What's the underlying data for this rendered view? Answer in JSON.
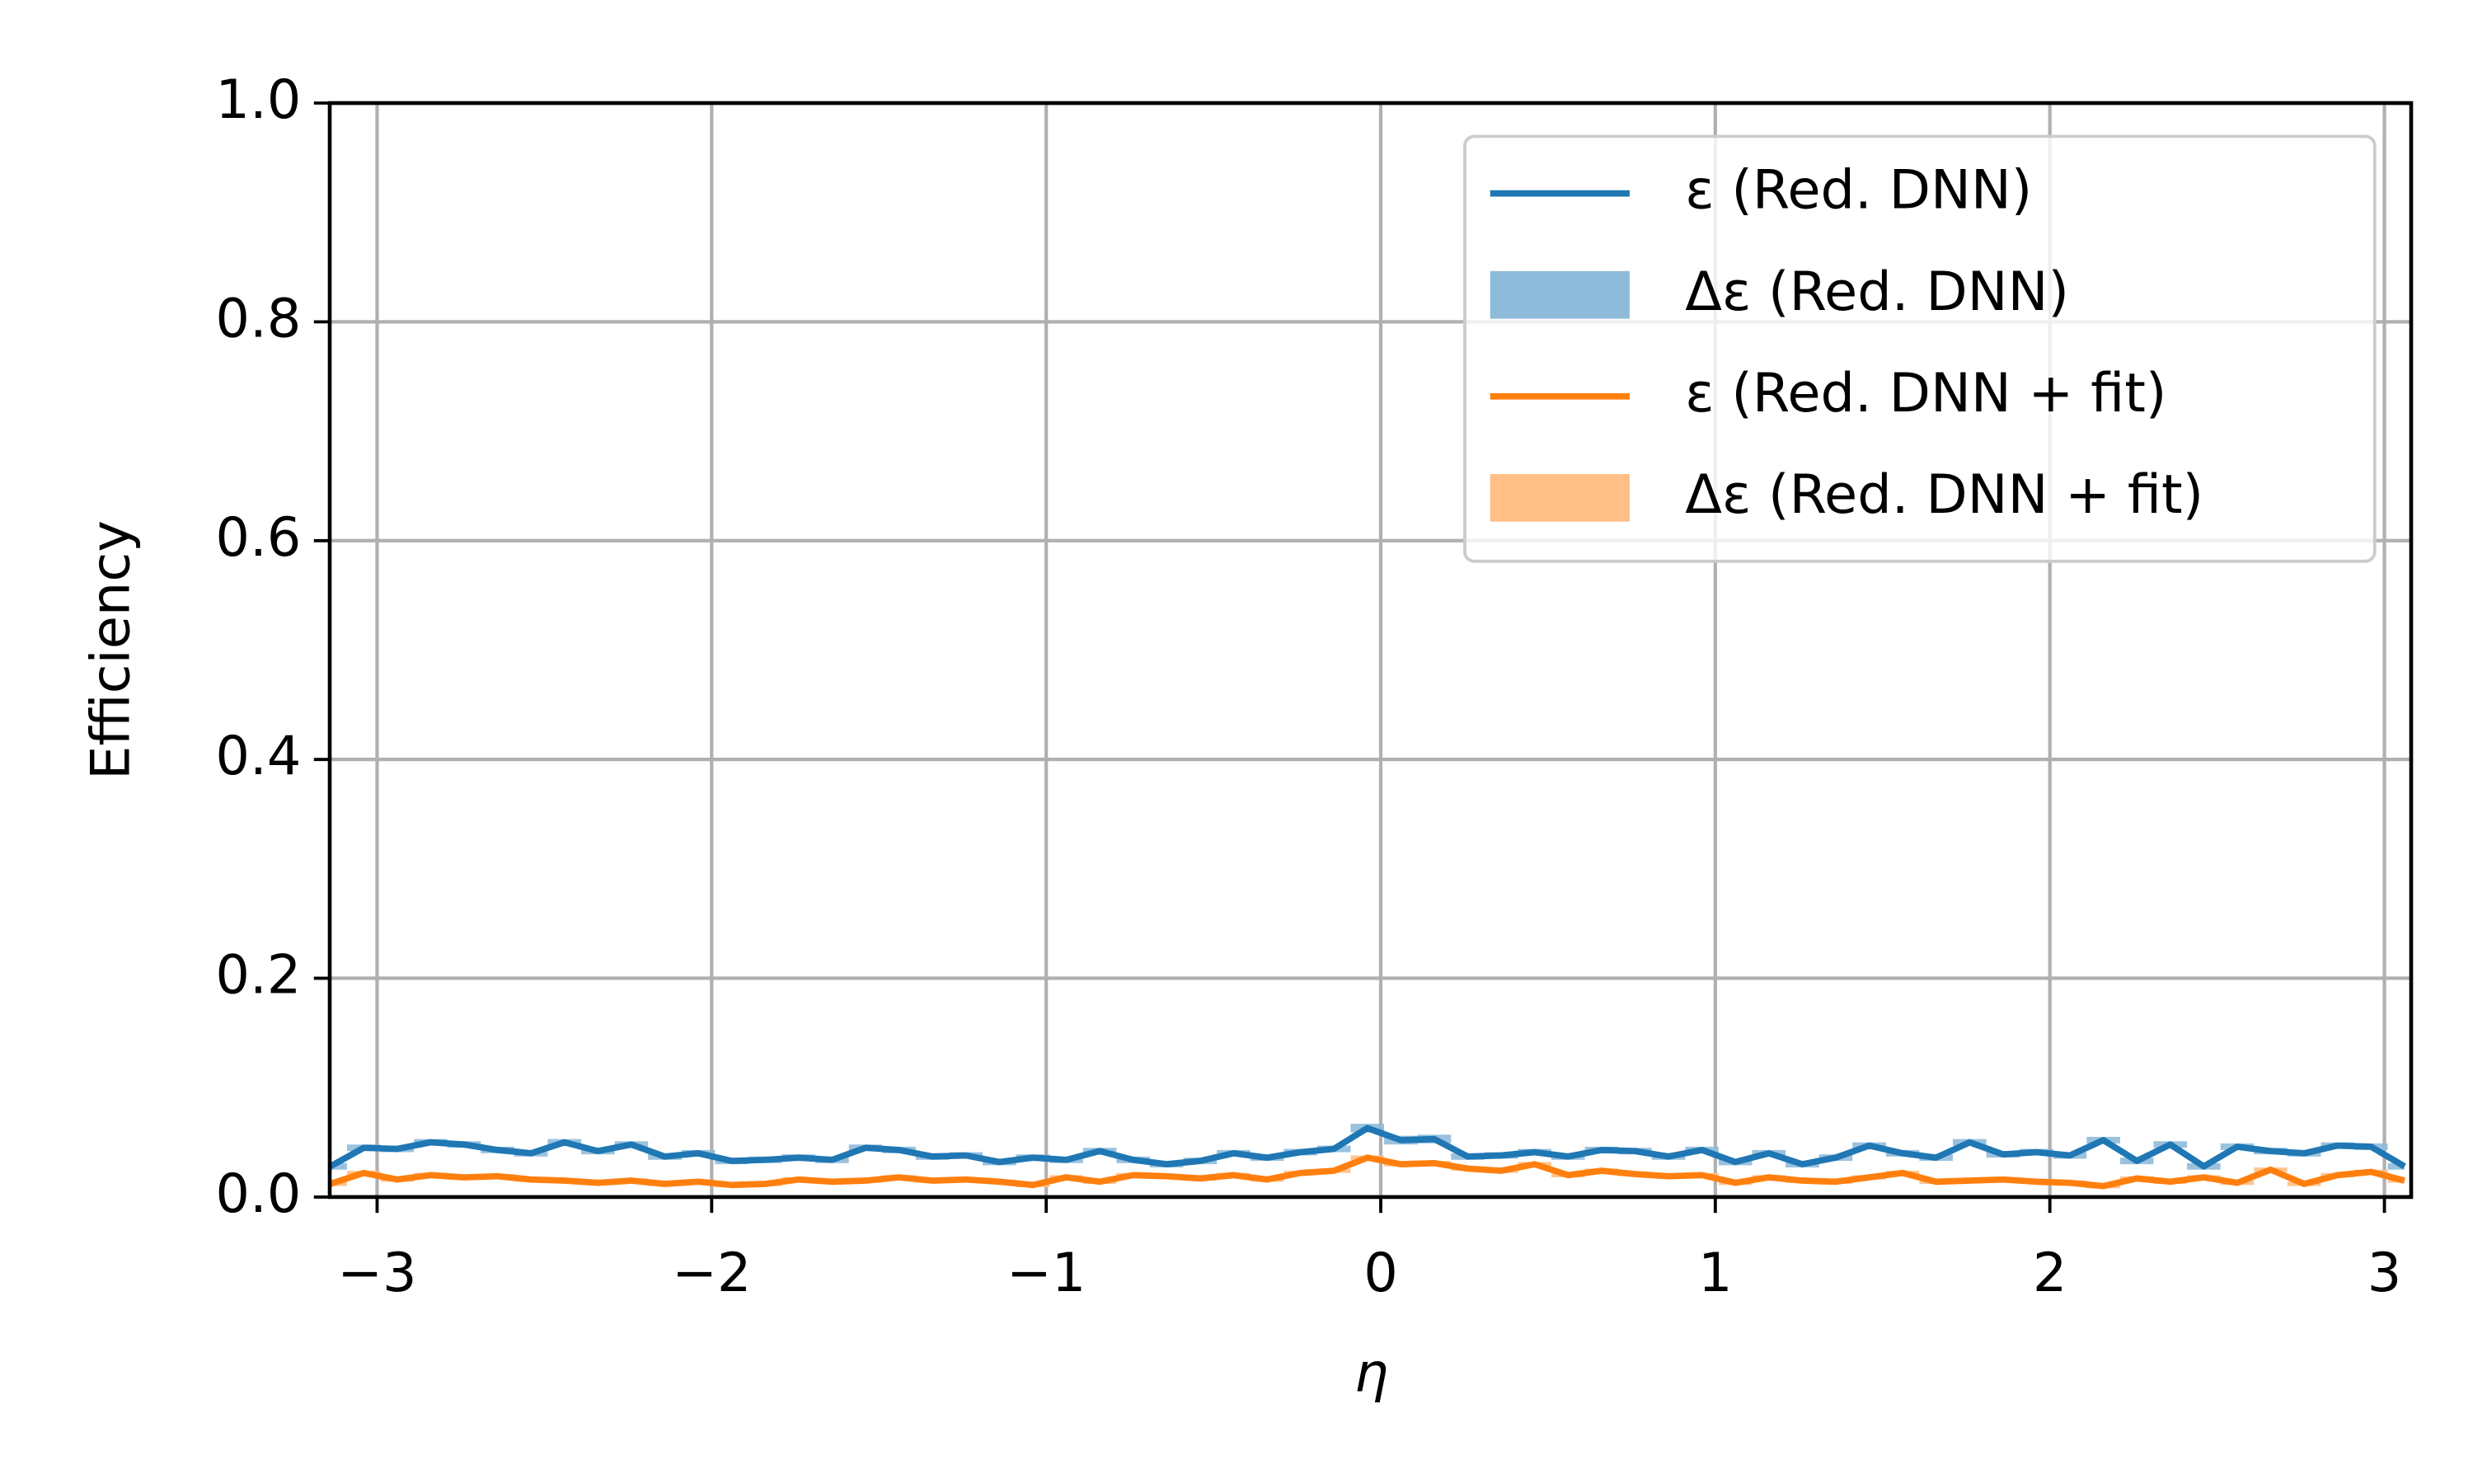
{
  "chart_data": {
    "type": "line",
    "x_label": "η",
    "y_label": "Efficiency",
    "xlim": [
      -3.1416,
      3.08
    ],
    "ylim": [
      0,
      1
    ],
    "xticks": [
      {
        "value": -3,
        "label": "−3"
      },
      {
        "value": -2,
        "label": "−2"
      },
      {
        "value": -1,
        "label": "−1"
      },
      0,
      1,
      2,
      3
    ],
    "yticks": [
      {
        "value": 0,
        "label": "0.0"
      },
      0.2,
      0.4,
      0.6,
      0.8,
      {
        "value": 1,
        "label": "1.0"
      }
    ],
    "grid": true,
    "legend": "upper right",
    "x": [
      -3.14,
      -3.04,
      -2.94,
      -2.84,
      -2.74,
      -2.64,
      -2.54,
      -2.44,
      -2.34,
      -2.24,
      -2.14,
      -2.04,
      -1.94,
      -1.84,
      -1.74,
      -1.64,
      -1.54,
      -1.44,
      -1.34,
      -1.24,
      -1.14,
      -1.04,
      -0.94,
      -0.84,
      -0.74,
      -0.64,
      -0.54,
      -0.44,
      -0.34,
      -0.24,
      -0.14,
      -0.04,
      0.06,
      0.16,
      0.26,
      0.36,
      0.46,
      0.56,
      0.66,
      0.76,
      0.86,
      0.96,
      1.06,
      1.16,
      1.26,
      1.36,
      1.46,
      1.56,
      1.66,
      1.76,
      1.86,
      1.96,
      2.06,
      2.16,
      2.26,
      2.36,
      2.46,
      2.56,
      2.66,
      2.76,
      2.86,
      2.96,
      3.06
    ],
    "series": [
      {
        "name": "ε (Red. DNN)",
        "color": "#1f77b4",
        "band_name": "Δε (Red. DNN)",
        "band_color": "#8fbbda",
        "values": [
          0.028,
          0.045,
          0.044,
          0.05,
          0.048,
          0.043,
          0.04,
          0.05,
          0.042,
          0.048,
          0.037,
          0.04,
          0.033,
          0.034,
          0.036,
          0.034,
          0.045,
          0.043,
          0.037,
          0.038,
          0.032,
          0.036,
          0.034,
          0.042,
          0.034,
          0.03,
          0.033,
          0.04,
          0.036,
          0.041,
          0.044,
          0.063,
          0.052,
          0.053,
          0.037,
          0.038,
          0.041,
          0.037,
          0.043,
          0.042,
          0.037,
          0.043,
          0.032,
          0.04,
          0.03,
          0.036,
          0.047,
          0.04,
          0.036,
          0.05,
          0.039,
          0.041,
          0.038,
          0.052,
          0.033,
          0.048,
          0.028,
          0.046,
          0.042,
          0.04,
          0.047,
          0.046,
          0.028
        ],
        "errors": [
          0.003,
          0.003,
          0.003,
          0.003,
          0.003,
          0.003,
          0.003,
          0.003,
          0.003,
          0.003,
          0.003,
          0.003,
          0.003,
          0.003,
          0.003,
          0.003,
          0.003,
          0.003,
          0.003,
          0.003,
          0.003,
          0.003,
          0.003,
          0.003,
          0.003,
          0.003,
          0.003,
          0.003,
          0.003,
          0.003,
          0.003,
          0.004,
          0.004,
          0.004,
          0.003,
          0.003,
          0.003,
          0.003,
          0.003,
          0.003,
          0.003,
          0.003,
          0.003,
          0.003,
          0.003,
          0.003,
          0.003,
          0.003,
          0.003,
          0.003,
          0.003,
          0.003,
          0.003,
          0.003,
          0.003,
          0.003,
          0.003,
          0.003,
          0.003,
          0.003,
          0.003,
          0.003,
          0.003
        ]
      },
      {
        "name": "ε (Red. DNN + fit)",
        "color": "#ff7f0e",
        "band_name": "Δε (Red. DNN + fit)",
        "band_color": "#ffbf86",
        "values": [
          0.012,
          0.022,
          0.016,
          0.02,
          0.018,
          0.019,
          0.016,
          0.015,
          0.013,
          0.015,
          0.012,
          0.014,
          0.011,
          0.012,
          0.016,
          0.014,
          0.015,
          0.018,
          0.015,
          0.016,
          0.014,
          0.011,
          0.018,
          0.014,
          0.02,
          0.019,
          0.017,
          0.02,
          0.016,
          0.022,
          0.024,
          0.036,
          0.03,
          0.031,
          0.026,
          0.024,
          0.03,
          0.02,
          0.024,
          0.021,
          0.019,
          0.02,
          0.013,
          0.018,
          0.015,
          0.014,
          0.018,
          0.022,
          0.014,
          0.015,
          0.016,
          0.014,
          0.013,
          0.01,
          0.017,
          0.014,
          0.018,
          0.013,
          0.025,
          0.012,
          0.02,
          0.023,
          0.015
        ],
        "errors": [
          0.002,
          0.002,
          0.002,
          0.002,
          0.002,
          0.002,
          0.002,
          0.002,
          0.002,
          0.002,
          0.002,
          0.002,
          0.002,
          0.002,
          0.002,
          0.002,
          0.002,
          0.002,
          0.002,
          0.002,
          0.002,
          0.002,
          0.002,
          0.002,
          0.002,
          0.002,
          0.002,
          0.002,
          0.002,
          0.002,
          0.002,
          0.002,
          0.002,
          0.002,
          0.002,
          0.002,
          0.002,
          0.002,
          0.002,
          0.002,
          0.002,
          0.002,
          0.002,
          0.002,
          0.002,
          0.002,
          0.002,
          0.002,
          0.002,
          0.002,
          0.002,
          0.002,
          0.002,
          0.002,
          0.002,
          0.002,
          0.002,
          0.002,
          0.002,
          0.002,
          0.002,
          0.002,
          0.002
        ]
      }
    ]
  }
}
